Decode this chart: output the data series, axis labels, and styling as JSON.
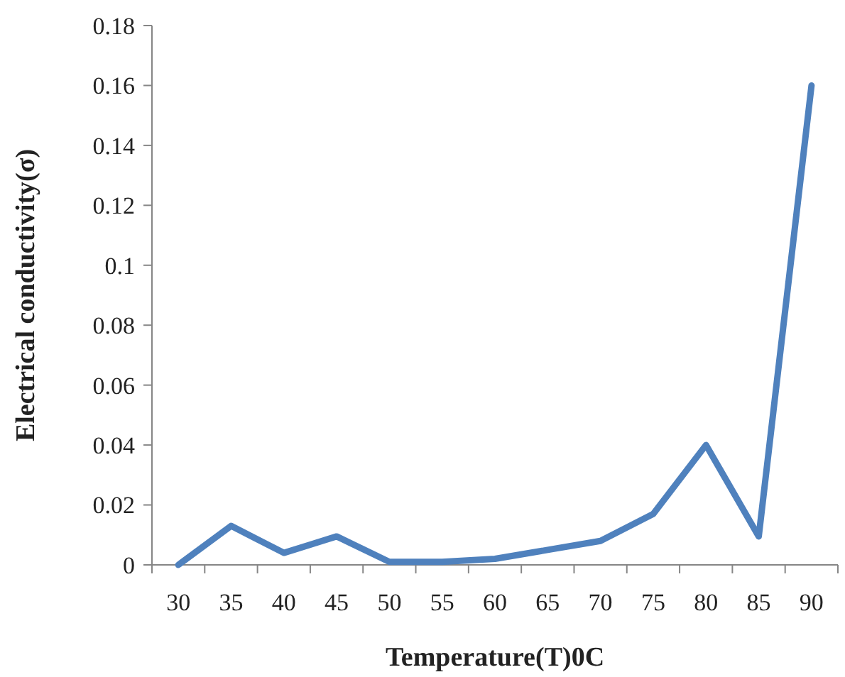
{
  "chart_data": {
    "type": "line",
    "xlabel": "Temperature(T)0C",
    "ylabel": "Electrical conductivity(σ)",
    "categories": [
      "30",
      "35",
      "40",
      "45",
      "50",
      "55",
      "60",
      "65",
      "70",
      "75",
      "80",
      "85",
      "90"
    ],
    "series": [
      {
        "color": "#4f81bd",
        "values": [
          0,
          0.013,
          0.004,
          0.0095,
          0.001,
          0.001,
          0.002,
          0.005,
          0.008,
          0.017,
          0.04,
          0.0095,
          0.16
        ]
      }
    ],
    "ylim": [
      0,
      0.18
    ],
    "yticks": [
      0,
      0.02,
      0.04,
      0.06,
      0.08,
      0.1,
      0.12,
      0.14,
      0.16,
      0.18
    ],
    "grid": false,
    "marker": "none",
    "line_style": "solid"
  }
}
